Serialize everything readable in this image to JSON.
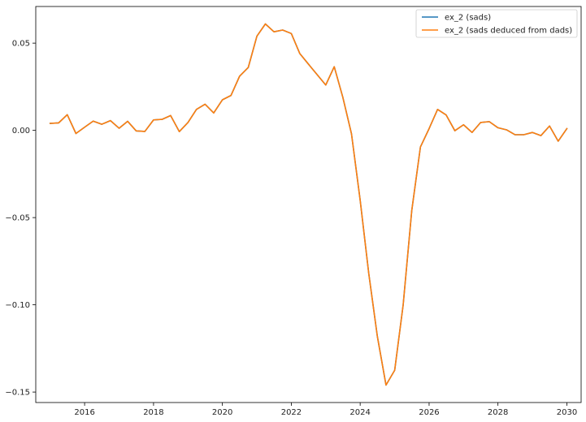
{
  "chart_data": {
    "type": "line",
    "x_kind": "date",
    "xlim": [
      "2014-08-01",
      "2030-06-01"
    ],
    "ylim": [
      -0.156,
      0.071
    ],
    "x_ticks": [
      {
        "date": "2016-01-01",
        "label": "2016"
      },
      {
        "date": "2018-01-01",
        "label": "2018"
      },
      {
        "date": "2020-01-01",
        "label": "2020"
      },
      {
        "date": "2022-01-01",
        "label": "2022"
      },
      {
        "date": "2024-01-01",
        "label": "2024"
      },
      {
        "date": "2026-01-01",
        "label": "2026"
      },
      {
        "date": "2028-01-01",
        "label": "2028"
      },
      {
        "date": "2030-01-01",
        "label": "2030"
      }
    ],
    "y_ticks": [
      {
        "value": 0.05,
        "label": "0.05"
      },
      {
        "value": 0.0,
        "label": "0.00"
      },
      {
        "value": -0.05,
        "label": "−0.05"
      },
      {
        "value": -0.1,
        "label": "−0.10"
      },
      {
        "value": -0.15,
        "label": "−0.15"
      }
    ],
    "grid": false,
    "legend_position": "top-right",
    "x": [
      "2015-01-01",
      "2015-04-01",
      "2015-07-01",
      "2015-10-01",
      "2016-01-01",
      "2016-04-01",
      "2016-07-01",
      "2016-10-01",
      "2017-01-01",
      "2017-04-01",
      "2017-07-01",
      "2017-10-01",
      "2018-01-01",
      "2018-04-01",
      "2018-07-01",
      "2018-10-01",
      "2019-01-01",
      "2019-04-01",
      "2019-07-01",
      "2019-10-01",
      "2020-01-01",
      "2020-04-01",
      "2020-07-01",
      "2020-10-01",
      "2021-01-01",
      "2021-04-01",
      "2021-07-01",
      "2021-10-01",
      "2022-01-01",
      "2022-04-01",
      "2022-07-01",
      "2022-10-01",
      "2023-01-01",
      "2023-04-01",
      "2023-07-01",
      "2023-10-01",
      "2024-01-01",
      "2024-04-01",
      "2024-07-01",
      "2024-10-01",
      "2025-01-01",
      "2025-04-01",
      "2025-07-01",
      "2025-10-01",
      "2026-01-01",
      "2026-04-01",
      "2026-07-01",
      "2026-10-01",
      "2027-01-01",
      "2027-04-01",
      "2027-07-01",
      "2027-10-01",
      "2028-01-01",
      "2028-04-01",
      "2028-07-01",
      "2028-10-01",
      "2029-01-01",
      "2029-04-01",
      "2029-07-01",
      "2029-10-01",
      "2030-01-01"
    ],
    "series": [
      {
        "name": "ex_2 (sads)",
        "color": "#1f77b4",
        "values": [
          0.004,
          0.0043,
          0.009,
          -0.0018,
          0.0018,
          0.0053,
          0.0035,
          0.0056,
          0.0012,
          0.0052,
          -0.0003,
          -0.0006,
          0.006,
          0.0063,
          0.0085,
          -0.0007,
          0.0045,
          0.012,
          0.015,
          0.01,
          0.0175,
          0.02,
          0.031,
          0.036,
          0.054,
          0.061,
          0.0565,
          0.0575,
          0.0555,
          0.044,
          0.038,
          0.032,
          0.026,
          0.0365,
          0.019,
          -0.002,
          -0.04,
          -0.082,
          -0.118,
          -0.146,
          -0.1375,
          -0.1,
          -0.046,
          -0.0095,
          0.001,
          0.012,
          0.0088,
          -0.0002,
          0.0032,
          -0.0012,
          0.0045,
          0.005,
          0.0015,
          0.0003,
          -0.0025,
          -0.0025,
          -0.0012,
          -0.003,
          0.0025,
          -0.0062,
          0.001
        ]
      },
      {
        "name": "ex_2 (sads deduced from dads)",
        "color": "#ff7f0e",
        "values": [
          0.004,
          0.0043,
          0.009,
          -0.0018,
          0.0018,
          0.0053,
          0.0035,
          0.0056,
          0.0012,
          0.0052,
          -0.0003,
          -0.0006,
          0.006,
          0.0063,
          0.0085,
          -0.0007,
          0.0045,
          0.012,
          0.015,
          0.01,
          0.0175,
          0.02,
          0.031,
          0.036,
          0.054,
          0.061,
          0.0565,
          0.0575,
          0.0555,
          0.044,
          0.038,
          0.032,
          0.026,
          0.0365,
          0.019,
          -0.002,
          -0.04,
          -0.082,
          -0.118,
          -0.146,
          -0.1375,
          -0.1,
          -0.046,
          -0.0095,
          0.001,
          0.012,
          0.0088,
          -0.0002,
          0.0032,
          -0.0012,
          0.0045,
          0.005,
          0.0015,
          0.0003,
          -0.0025,
          -0.0025,
          -0.0012,
          -0.003,
          0.0025,
          -0.0062,
          0.001
        ]
      }
    ]
  }
}
